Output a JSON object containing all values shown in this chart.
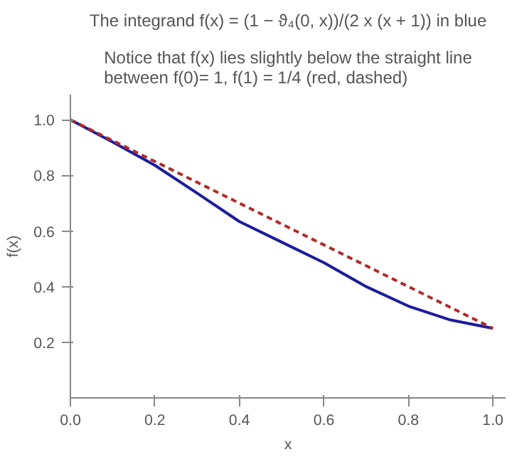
{
  "chart_data": {
    "type": "line",
    "title": "The integrand f(x) = (1 − ϑ₄(0, x))/(2 x (x + 1)) in blue",
    "subtitle": "Notice that f(x) lies slightly below the straight line between f(0)= 1, f(1) = 1/4 (red, dashed)",
    "xlabel": "x",
    "ylabel": "f(x)",
    "xlim": [
      0,
      1.03
    ],
    "ylim": [
      0,
      1.09
    ],
    "xticks": [
      {
        "value": 0,
        "label": "0.0"
      },
      0.2,
      0.4,
      0.6,
      0.8,
      {
        "value": 1,
        "label": "1.0"
      }
    ],
    "yticks": [
      0.2,
      0.4,
      0.6,
      0.8,
      {
        "value": 1,
        "label": "1.0"
      }
    ],
    "grid": false,
    "series": [
      {
        "color": "#1c1c9c",
        "line_style": "solid",
        "x": [
          0,
          0.1,
          0.2,
          0.3,
          0.4,
          0.5,
          0.6,
          0.7,
          0.8,
          0.9,
          1.0
        ],
        "values": [
          1.0,
          0.92,
          0.836,
          0.736,
          0.634,
          0.56,
          0.486,
          0.4,
          0.33,
          0.28,
          0.25
        ]
      },
      {
        "color": "#b22a2a",
        "line_style": "dashed",
        "x": [
          0,
          1
        ],
        "values": [
          1.0,
          0.25
        ]
      }
    ]
  }
}
